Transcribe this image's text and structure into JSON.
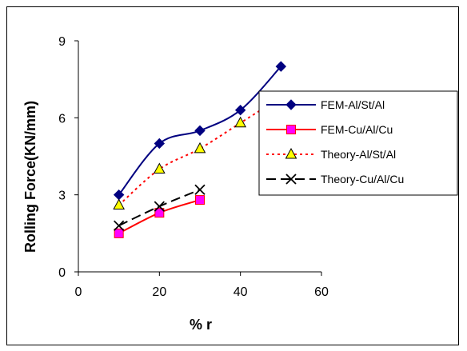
{
  "chart_data": {
    "type": "line",
    "title": "",
    "xlabel": "% r",
    "ylabel": "Rolling Force(KN/mm)",
    "xlim": [
      0,
      60
    ],
    "ylim": [
      0,
      9
    ],
    "xticks": [
      0,
      20,
      40,
      60
    ],
    "yticks": [
      0,
      3,
      6,
      9
    ],
    "grid": false,
    "legend_position": "right",
    "series": [
      {
        "name": "FEM-Al/St/Al",
        "color": "#000080",
        "line_style": "solid",
        "marker": "diamond",
        "marker_fill": "#000080",
        "x": [
          10,
          20,
          30,
          40,
          50
        ],
        "y": [
          3.0,
          5.0,
          5.5,
          6.3,
          8.0
        ]
      },
      {
        "name": "FEM-Cu/Al/Cu",
        "color": "#ff0000",
        "line_style": "solid",
        "marker": "square",
        "marker_fill": "#ff00ff",
        "x": [
          10,
          20,
          30
        ],
        "y": [
          1.5,
          2.3,
          2.8
        ]
      },
      {
        "name": "Theory-Al/St/Al",
        "color": "#ff0000",
        "line_style": "dotted",
        "marker": "triangle",
        "marker_fill": "#ffff00",
        "x": [
          10,
          20,
          30,
          40,
          50
        ],
        "y": [
          2.6,
          4.0,
          4.8,
          5.8,
          6.8
        ]
      },
      {
        "name": "Theory-Cu/Al/Cu",
        "color": "#000000",
        "line_style": "dashed",
        "marker": "x",
        "marker_fill": "none",
        "x": [
          10,
          20,
          30
        ],
        "y": [
          1.8,
          2.55,
          3.2
        ]
      }
    ]
  }
}
